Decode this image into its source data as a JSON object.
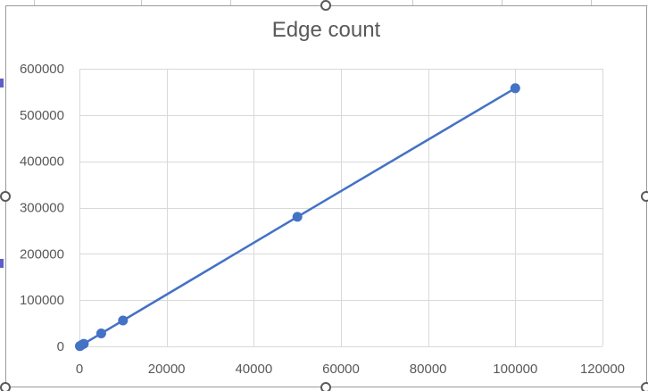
{
  "chart_data": {
    "type": "scatter",
    "title": "Edge count",
    "xlabel": "",
    "ylabel": "",
    "xlim": [
      0,
      120000
    ],
    "ylim": [
      0,
      600000
    ],
    "x_ticks": [
      0,
      20000,
      40000,
      60000,
      80000,
      100000,
      120000
    ],
    "y_ticks": [
      0,
      100000,
      200000,
      300000,
      400000,
      500000,
      600000
    ],
    "grid": true,
    "legend": "none",
    "series": [
      {
        "name": "Edge count",
        "color": "#4472c4",
        "marker": "circle",
        "line": "straight",
        "x": [
          100,
          500,
          1000,
          5000,
          10000,
          50000,
          100000
        ],
        "y": [
          560,
          2800,
          5600,
          28000,
          56000,
          280000,
          558000
        ]
      }
    ]
  },
  "colors": {
    "series": "#4472c4",
    "grid": "#d9d9d9",
    "tick_text": "#595959",
    "title_text": "#595959"
  }
}
